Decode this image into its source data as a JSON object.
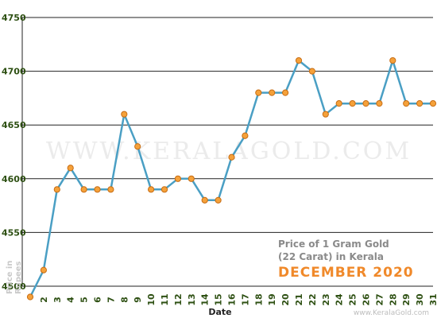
{
  "chart_data": {
    "type": "line",
    "title_line1": "Price of 1 Gram Gold",
    "title_line2": "(22 Carat) in Kerala",
    "title_month": "DECEMBER 2020",
    "xlabel": "Date",
    "ylabel_line1": "Price in",
    "ylabel_line2": "Rupees",
    "watermark": "WWW.KERALAGOLD.COM",
    "source": "www.KeralaGold.com",
    "ylim": [
      4500,
      4750
    ],
    "yticks": [
      "4500",
      "4550",
      "4600",
      "4650",
      "4700",
      "4750"
    ],
    "x": [
      "1",
      "2",
      "3",
      "4",
      "5",
      "6",
      "7",
      "8",
      "9",
      "10",
      "11",
      "12",
      "13",
      "14",
      "15",
      "16",
      "17",
      "18",
      "19",
      "20",
      "21",
      "22",
      "23",
      "24",
      "25",
      "26",
      "27",
      "28",
      "29",
      "30",
      "31"
    ],
    "series": [
      {
        "values": [
          4490,
          4515,
          4590,
          4610,
          4590,
          4590,
          4590,
          4660,
          4630,
          4590,
          4590,
          4600,
          4600,
          4580,
          4580,
          4620,
          4640,
          4680,
          4680,
          4680,
          4710,
          4700,
          4660,
          4670,
          4670,
          4670,
          4670,
          4710,
          4670,
          4670,
          4670
        ]
      }
    ],
    "grid": true,
    "line_color": "#4a9fc4",
    "marker_color": "#f5a13a"
  }
}
